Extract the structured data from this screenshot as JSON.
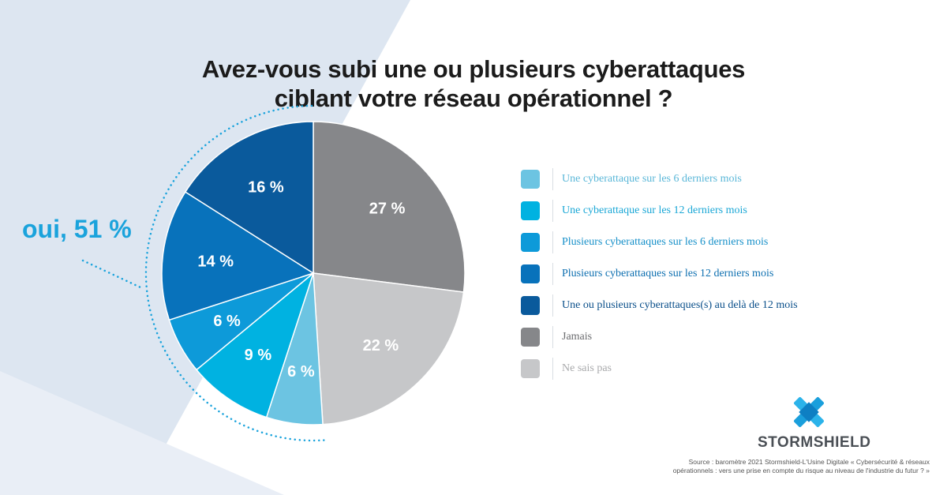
{
  "chart_data": {
    "type": "pie",
    "title": [
      "Avez-vous subi une ou plusieurs cyberattaques",
      "ciblant votre réseau opérationnel ?"
    ],
    "slices": [
      {
        "label": "Jamais",
        "value": 27,
        "display": "27 %",
        "color": "#86878a"
      },
      {
        "label": "Ne sais pas",
        "value": 22,
        "display": "22 %",
        "color": "#c6c7c9"
      },
      {
        "label": "Une cyberattaque sur les 6 derniers mois",
        "value": 6,
        "display": "6 %",
        "color": "#6cc4e2"
      },
      {
        "label": "Une cyberattaque sur les 12 derniers mois",
        "value": 9,
        "display": "9 %",
        "color": "#00b2e1"
      },
      {
        "label": "Plusieurs cyberattaques sur les 6 derniers mois",
        "value": 6,
        "display": "6 %",
        "color": "#0d9ad9"
      },
      {
        "label": "Plusieurs cyberattaques sur les 12 derniers mois",
        "value": 14,
        "display": "14 %",
        "color": "#0872bb"
      },
      {
        "label": "Une ou plusieurs cyberattaques(s) au delà de 12 mois",
        "value": 16,
        "display": "16 %",
        "color": "#0a5a9c"
      }
    ],
    "legend": [
      {
        "label": "Une cyberattaque sur les 6 derniers mois",
        "color": "#6cc4e2",
        "text_color": "#5ab7d8"
      },
      {
        "label": "Une cyberattaque sur les 12 derniers mois",
        "color": "#00b2e1",
        "text_color": "#1aa7d6"
      },
      {
        "label": "Plusieurs cyberattaques sur les 6 derniers mois",
        "color": "#0d9ad9",
        "text_color": "#1690c9"
      },
      {
        "label": "Plusieurs cyberattaques sur les 12 derniers mois",
        "color": "#0872bb",
        "text_color": "#0d6fb0"
      },
      {
        "label": "Une ou plusieurs cyberattaques(s) au delà de 12 mois",
        "color": "#0a5a9c",
        "text_color": "#0a4f8a"
      },
      {
        "label": "Jamais",
        "color": "#86878a",
        "text_color": "#6b6c6f"
      },
      {
        "label": "Ne sais pas",
        "color": "#c6c7c9",
        "text_color": "#a9aaac"
      }
    ],
    "legend_position": "right",
    "annotation": "oui, 51 %"
  },
  "brand": "STORMSHIELD",
  "source": [
    "Source : baromètre 2021 Stormshield-L'Usine Digitale « Cybersécurité & réseaux",
    "opérationnels : vers une prise en compte du risque au niveau de l'industrie du futur ? »"
  ]
}
